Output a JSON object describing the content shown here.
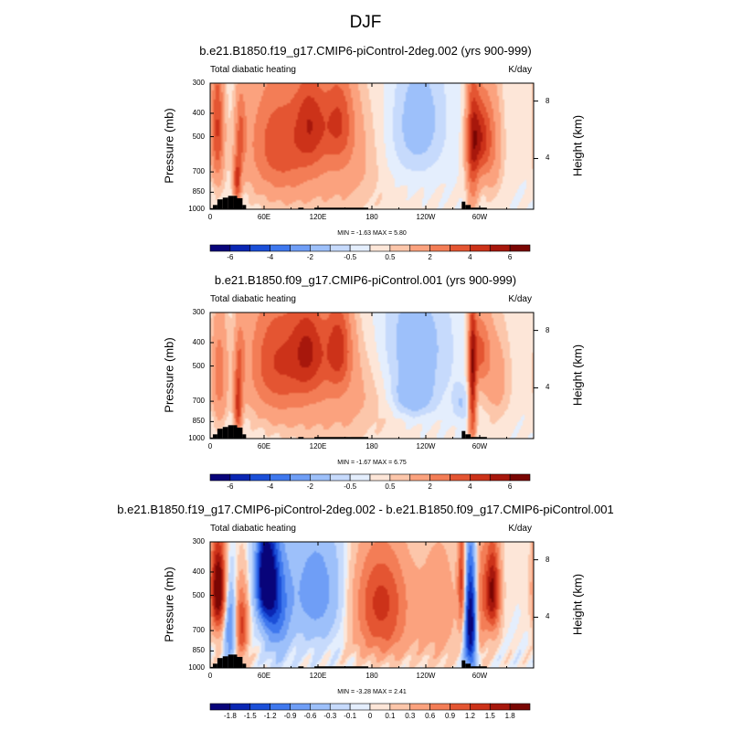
{
  "figure": {
    "main_title": "DJF",
    "panels": [
      {
        "title": "b.e21.B1850.f19_g17.CMIP6-piControl-2deg.002 (yrs 900-999)",
        "left_label": "Total diabatic heating",
        "right_label": "K/day",
        "min_max": "MIN =  -1.63  MAX =   5.80"
      },
      {
        "title": "b.e21.B1850.f09_g17.CMIP6-piControl.001 (yrs 900-999)",
        "left_label": "Total diabatic heating",
        "right_label": "K/day",
        "min_max": "MIN =  -1.67  MAX =   6.75"
      },
      {
        "title": "b.e21.B1850.f19_g17.CMIP6-piControl-2deg.002 - b.e21.B1850.f09_g17.CMIP6-piControl.001",
        "left_label": "Total diabatic heating",
        "right_label": "K/day",
        "min_max": "MIN =  -3.28  MAX =   2.41"
      }
    ]
  },
  "chart_data": [
    {
      "type": "heatmap",
      "title": "b.e21.B1850.f19_g17.CMIP6-piControl-2deg.002 (yrs 900-999)",
      "variable": "Total diabatic heating",
      "units": "K/day",
      "xlabel": "",
      "ylabel": "Pressure (mb)",
      "ylabel_right": "Height (km)",
      "x_ticks": [
        "0",
        "60E",
        "120E",
        "180",
        "120W",
        "60W"
      ],
      "x_tick_lons": [
        0,
        60,
        120,
        180,
        240,
        300
      ],
      "xlim": [
        0,
        360
      ],
      "y_ticks": [
        "300",
        "400",
        "500",
        "700",
        "850",
        "1000"
      ],
      "y_tick_values": [
        300,
        400,
        500,
        700,
        850,
        1000
      ],
      "ylim": [
        1000,
        300
      ],
      "right_ticks": [
        "8",
        "4"
      ],
      "right_tick_pressures": [
        356,
        616
      ],
      "min": -1.63,
      "max": 5.8,
      "levels": [
        -7,
        -6,
        -5,
        -4,
        -3,
        -2,
        -1,
        -0.5,
        0,
        0.5,
        1,
        2,
        3,
        4,
        5,
        6,
        7
      ],
      "colorbar_labels": [
        "-6",
        "-4",
        "-2",
        "-0.5",
        "0.5",
        "2",
        "4",
        "6"
      ],
      "colorbar_label_edges": [
        1,
        3,
        5,
        7,
        9,
        11,
        13,
        15
      ],
      "colors": [
        "#08047a",
        "#0a26b3",
        "#1b4fd8",
        "#3f78ee",
        "#6f9ef6",
        "#9dc0fa",
        "#c6dafc",
        "#e4eefd",
        "#fde6d8",
        "#fcc6aa",
        "#fba27e",
        "#f37d56",
        "#e45532",
        "#cc3219",
        "#a7170c",
        "#7a0603"
      ],
      "features": [
        {
          "lon": 8,
          "p": 460,
          "wlon": 5,
          "wp": 200,
          "amp": 4
        },
        {
          "lon": 30,
          "p": 760,
          "wlon": 3,
          "wp": 110,
          "amp": 4
        },
        {
          "lon": 34,
          "p": 480,
          "wlon": 4,
          "wp": 130,
          "amp": 2.5
        },
        {
          "lon": 75,
          "p": 520,
          "wlon": 25,
          "wp": 230,
          "amp": 3
        },
        {
          "lon": 112,
          "p": 430,
          "wlon": 12,
          "wp": 140,
          "amp": 3
        },
        {
          "lon": 143,
          "p": 420,
          "wlon": 12,
          "wp": 140,
          "amp": 3
        },
        {
          "lon": 140,
          "p": 640,
          "wlon": 55,
          "wp": 270,
          "amp": 1.5
        },
        {
          "lon": 232,
          "p": 440,
          "wlon": 22,
          "wp": 200,
          "amp": -1.6
        },
        {
          "lon": 200,
          "p": 620,
          "wlon": 20,
          "wp": 200,
          "amp": -0.6
        },
        {
          "lon": 292,
          "p": 560,
          "wlon": 5,
          "wp": 280,
          "amp": 3.5
        },
        {
          "lon": 300,
          "p": 500,
          "wlon": 8,
          "wp": 130,
          "amp": 3.5
        },
        {
          "lon": 312,
          "p": 540,
          "wlon": 10,
          "wp": 220,
          "amp": 2
        }
      ],
      "topography": [
        {
          "lon": [
            0,
            3
          ],
          "p": 990
        },
        {
          "lon": [
            3,
            8
          ],
          "p": 960
        },
        {
          "lon": [
            8,
            14
          ],
          "p": 910
        },
        {
          "lon": [
            14,
            20
          ],
          "p": 895
        },
        {
          "lon": [
            20,
            26
          ],
          "p": 880
        },
        {
          "lon": [
            26,
            30
          ],
          "p": 880
        },
        {
          "lon": [
            30,
            36
          ],
          "p": 900
        },
        {
          "lon": [
            36,
            40
          ],
          "p": 960
        },
        {
          "lon": [
            98,
            104
          ],
          "p": 985
        },
        {
          "lon": [
            116,
            176
          ],
          "p": 985
        },
        {
          "lon": [
            280,
            284
          ],
          "p": 930
        },
        {
          "lon": [
            284,
            290
          ],
          "p": 960
        },
        {
          "lon": [
            290,
            308
          ],
          "p": 985
        }
      ]
    },
    {
      "type": "heatmap",
      "title": "b.e21.B1850.f09_g17.CMIP6-piControl.001 (yrs 900-999)",
      "variable": "Total diabatic heating",
      "units": "K/day",
      "xlabel": "",
      "ylabel": "Pressure (mb)",
      "ylabel_right": "Height (km)",
      "x_ticks": [
        "0",
        "60E",
        "120E",
        "180",
        "120W",
        "60W"
      ],
      "x_tick_lons": [
        0,
        60,
        120,
        180,
        240,
        300
      ],
      "xlim": [
        0,
        360
      ],
      "y_ticks": [
        "300",
        "400",
        "500",
        "700",
        "850",
        "1000"
      ],
      "y_tick_values": [
        300,
        400,
        500,
        700,
        850,
        1000
      ],
      "ylim": [
        1000,
        300
      ],
      "right_ticks": [
        "8",
        "4"
      ],
      "right_tick_pressures": [
        356,
        616
      ],
      "min": -1.67,
      "max": 6.75,
      "levels": [
        -7,
        -6,
        -5,
        -4,
        -3,
        -2,
        -1,
        -0.5,
        0,
        0.5,
        1,
        2,
        3,
        4,
        5,
        6,
        7
      ],
      "colorbar_labels": [
        "-6",
        "-4",
        "-2",
        "-0.5",
        "0.5",
        "2",
        "4",
        "6"
      ],
      "colorbar_label_edges": [
        1,
        3,
        5,
        7,
        9,
        11,
        13,
        15
      ],
      "colors": [
        "#08047a",
        "#0a26b3",
        "#1b4fd8",
        "#3f78ee",
        "#6f9ef6",
        "#9dc0fa",
        "#c6dafc",
        "#e4eefd",
        "#fde6d8",
        "#fcc6aa",
        "#fba27e",
        "#f37d56",
        "#e45532",
        "#cc3219",
        "#a7170c",
        "#7a0603"
      ],
      "features": [
        {
          "lon": 10,
          "p": 540,
          "wlon": 6,
          "wp": 200,
          "amp": 2.5
        },
        {
          "lon": 31,
          "p": 740,
          "wlon": 3,
          "wp": 140,
          "amp": 4
        },
        {
          "lon": 33,
          "p": 470,
          "wlon": 4,
          "wp": 120,
          "amp": 2
        },
        {
          "lon": 72,
          "p": 460,
          "wlon": 22,
          "wp": 200,
          "amp": 3.2
        },
        {
          "lon": 110,
          "p": 420,
          "wlon": 14,
          "wp": 140,
          "amp": 3.5
        },
        {
          "lon": 143,
          "p": 410,
          "wlon": 10,
          "wp": 130,
          "amp": 3.5
        },
        {
          "lon": 130,
          "p": 630,
          "wlon": 55,
          "wp": 260,
          "amp": 1.6
        },
        {
          "lon": 225,
          "p": 430,
          "wlon": 30,
          "wp": 200,
          "amp": -1.7
        },
        {
          "lon": 225,
          "p": 680,
          "wlon": 16,
          "wp": 90,
          "amp": -1.4
        },
        {
          "lon": 280,
          "p": 720,
          "wlon": 7,
          "wp": 90,
          "amp": -1.0
        },
        {
          "lon": 292,
          "p": 600,
          "wlon": 3,
          "wp": 300,
          "amp": 5
        },
        {
          "lon": 300,
          "p": 430,
          "wlon": 8,
          "wp": 110,
          "amp": 3
        },
        {
          "lon": 318,
          "p": 560,
          "wlon": 12,
          "wp": 200,
          "amp": 1.4
        }
      ],
      "topography": [
        {
          "lon": [
            0,
            3
          ],
          "p": 990
        },
        {
          "lon": [
            3,
            8
          ],
          "p": 960
        },
        {
          "lon": [
            8,
            14
          ],
          "p": 910
        },
        {
          "lon": [
            14,
            20
          ],
          "p": 895
        },
        {
          "lon": [
            20,
            26
          ],
          "p": 880
        },
        {
          "lon": [
            26,
            30
          ],
          "p": 880
        },
        {
          "lon": [
            30,
            36
          ],
          "p": 900
        },
        {
          "lon": [
            36,
            40
          ],
          "p": 960
        },
        {
          "lon": [
            98,
            104
          ],
          "p": 985
        },
        {
          "lon": [
            116,
            176
          ],
          "p": 985
        },
        {
          "lon": [
            280,
            284
          ],
          "p": 930
        },
        {
          "lon": [
            284,
            290
          ],
          "p": 960
        },
        {
          "lon": [
            290,
            308
          ],
          "p": 985
        }
      ]
    },
    {
      "type": "heatmap",
      "title": "b.e21.B1850.f19_g17.CMIP6-piControl-2deg.002 - b.e21.B1850.f09_g17.CMIP6-piControl.001",
      "variable": "Total diabatic heating",
      "units": "K/day",
      "xlabel": "",
      "ylabel": "Pressure (mb)",
      "ylabel_right": "Height (km)",
      "x_ticks": [
        "0",
        "60E",
        "120E",
        "180",
        "120W",
        "60W"
      ],
      "x_tick_lons": [
        0,
        60,
        120,
        180,
        240,
        300
      ],
      "xlim": [
        0,
        360
      ],
      "y_ticks": [
        "300",
        "400",
        "500",
        "700",
        "850",
        "1000"
      ],
      "y_tick_values": [
        300,
        400,
        500,
        700,
        850,
        1000
      ],
      "ylim": [
        1000,
        300
      ],
      "right_ticks": [
        "8",
        "4"
      ],
      "right_tick_pressures": [
        356,
        616
      ],
      "min": -3.28,
      "max": 2.41,
      "levels": [
        -2.1,
        -1.8,
        -1.5,
        -1.2,
        -0.9,
        -0.6,
        -0.3,
        -0.1,
        0,
        0.1,
        0.3,
        0.6,
        0.9,
        1.2,
        1.5,
        1.8,
        2.1
      ],
      "colorbar_labels": [
        "-1.8",
        "-1.5",
        "-1.2",
        "-0.9",
        "-0.6",
        "-0.3",
        "-0.1",
        "0",
        "0.1",
        "0.3",
        "0.6",
        "0.9",
        "1.2",
        "1.5",
        "1.8"
      ],
      "colorbar_label_edges": [
        1,
        2,
        3,
        4,
        5,
        6,
        7,
        8,
        9,
        10,
        11,
        12,
        13,
        14,
        15
      ],
      "colors": [
        "#08047a",
        "#0a26b3",
        "#1b4fd8",
        "#3f78ee",
        "#6f9ef6",
        "#9dc0fa",
        "#c6dafc",
        "#e4eefd",
        "#fde6d8",
        "#fcc6aa",
        "#fba27e",
        "#f37d56",
        "#e45532",
        "#cc3219",
        "#a7170c",
        "#7a0603"
      ],
      "features": [
        {
          "lon": 9,
          "p": 470,
          "wlon": 6,
          "wp": 150,
          "amp": 2.3
        },
        {
          "lon": 22,
          "p": 660,
          "wlon": 5,
          "wp": 180,
          "amp": -1.0
        },
        {
          "lon": 35,
          "p": 660,
          "wlon": 5,
          "wp": 160,
          "amp": 1.3
        },
        {
          "lon": 62,
          "p": 420,
          "wlon": 8,
          "wp": 140,
          "amp": -2.3
        },
        {
          "lon": 75,
          "p": 560,
          "wlon": 10,
          "wp": 220,
          "amp": -1.0
        },
        {
          "lon": 118,
          "p": 480,
          "wlon": 22,
          "wp": 200,
          "amp": -0.8
        },
        {
          "lon": 190,
          "p": 530,
          "wlon": 22,
          "wp": 190,
          "amp": 1.3
        },
        {
          "lon": 195,
          "p": 790,
          "wlon": 26,
          "wp": 100,
          "amp": 0.3
        },
        {
          "lon": 255,
          "p": 560,
          "wlon": 16,
          "wp": 250,
          "amp": 0.5
        },
        {
          "lon": 280,
          "p": 440,
          "wlon": 3,
          "wp": 170,
          "amp": 1.3
        },
        {
          "lon": 290,
          "p": 640,
          "wlon": 5,
          "wp": 260,
          "amp": -2.2
        },
        {
          "lon": 300,
          "p": 540,
          "wlon": 5,
          "wp": 240,
          "amp": 0.8
        },
        {
          "lon": 314,
          "p": 480,
          "wlon": 6,
          "wp": 150,
          "amp": 1.9
        }
      ],
      "topography": [
        {
          "lon": [
            0,
            3
          ],
          "p": 990
        },
        {
          "lon": [
            3,
            8
          ],
          "p": 960
        },
        {
          "lon": [
            8,
            14
          ],
          "p": 910
        },
        {
          "lon": [
            14,
            20
          ],
          "p": 895
        },
        {
          "lon": [
            20,
            26
          ],
          "p": 880
        },
        {
          "lon": [
            26,
            30
          ],
          "p": 880
        },
        {
          "lon": [
            30,
            36
          ],
          "p": 900
        },
        {
          "lon": [
            36,
            40
          ],
          "p": 960
        },
        {
          "lon": [
            98,
            104
          ],
          "p": 985
        },
        {
          "lon": [
            116,
            176
          ],
          "p": 985
        },
        {
          "lon": [
            280,
            284
          ],
          "p": 930
        },
        {
          "lon": [
            284,
            290
          ],
          "p": 960
        },
        {
          "lon": [
            290,
            308
          ],
          "p": 985
        }
      ]
    }
  ]
}
